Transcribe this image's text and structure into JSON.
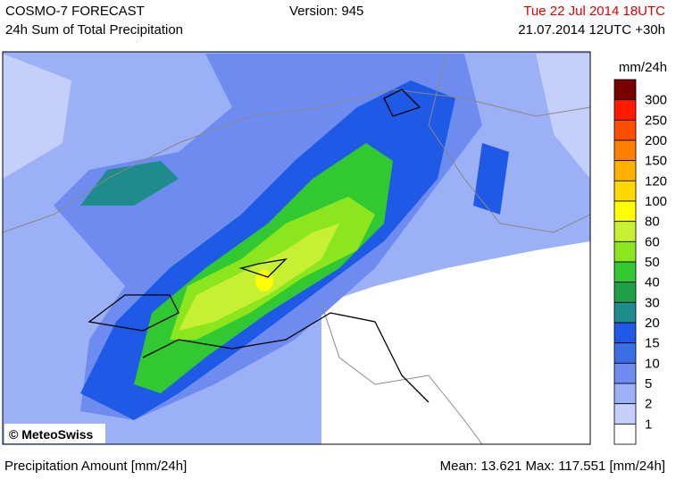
{
  "header": {
    "title": "COSMO-7 FORECAST",
    "subtitle": "24h Sum of Total Precipitation",
    "version": "Version: 945",
    "valid_time": "Tue 22 Jul 2014 18UTC",
    "run_time": "21.07.2014 12UTC +30h"
  },
  "legend": {
    "unit": "mm/24h",
    "colors": [
      "#7a0000",
      "#ff1a00",
      "#ff4d00",
      "#ff8000",
      "#ffb000",
      "#ffd700",
      "#ffff00",
      "#c8f032",
      "#8ce61e",
      "#32c832",
      "#1ea046",
      "#1e8c8c",
      "#1e5ae6",
      "#3c6ee6",
      "#6e8cf0",
      "#9cb0f5",
      "#c4d0fa",
      "#ffffff"
    ],
    "labels": [
      300,
      250,
      200,
      150,
      120,
      100,
      80,
      60,
      50,
      40,
      30,
      20,
      15,
      10,
      5,
      2,
      1
    ]
  },
  "map": {
    "credit": "© MeteoSwiss"
  },
  "footer": {
    "left": "Precipitation Amount [mm/24h]",
    "right": "Mean:  13.621 Max: 117.551 [mm/24h]"
  }
}
